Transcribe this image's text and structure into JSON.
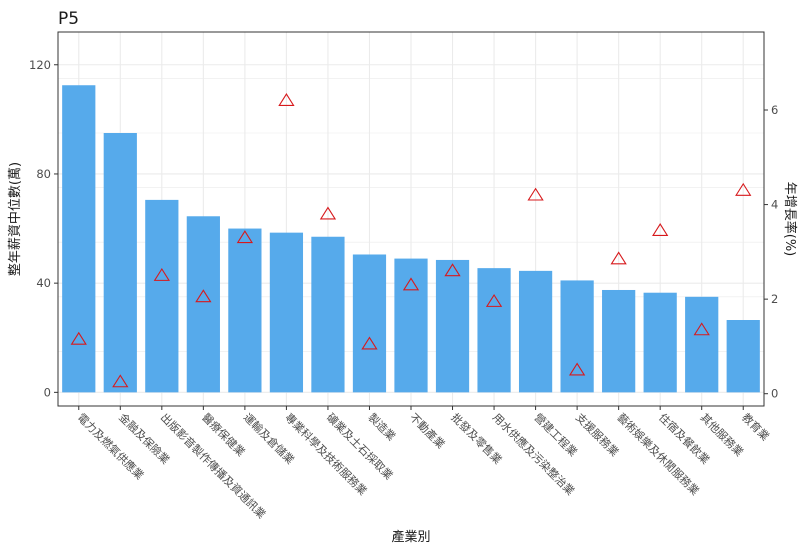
{
  "chart_data": {
    "type": "bar",
    "title": "P5",
    "xlabel": "產業別",
    "ylabel": "整年薪資中位數(萬)",
    "y2label": "年增長率(%)",
    "ylim": [
      -5,
      132
    ],
    "y2lim": [
      -0.26,
      7.65
    ],
    "yticks": [
      0,
      40,
      80,
      120
    ],
    "y2ticks": [
      0,
      2,
      4,
      6
    ],
    "grid": true,
    "legend": "none",
    "categories": [
      "電力及燃氣供應業",
      "金融及保險業",
      "出版影音製作傳播及資通訊業",
      "醫療保健業",
      "運輸及倉儲業",
      "專業科學及技術服務業",
      "礦業及土石採取業",
      "製造業",
      "不動產業",
      "批發及零售業",
      "用水供應及污染整治業",
      "營建工程業",
      "支援服務業",
      "藝術娛樂及休閒服務業",
      "住宿及餐飲業",
      "其他服務業",
      "教育業"
    ],
    "series": [
      {
        "type": "bar",
        "axis": "left",
        "values": [
          112.5,
          95,
          70.5,
          64.5,
          60,
          58.5,
          57,
          50.5,
          49,
          48.5,
          45.5,
          44.5,
          41,
          37.5,
          36.5,
          35,
          26.5
        ]
      },
      {
        "type": "point",
        "marker": "triangle",
        "axis": "right",
        "values": [
          1.15,
          0.25,
          2.5,
          2.05,
          3.3,
          6.2,
          3.8,
          1.05,
          2.3,
          2.6,
          1.95,
          4.2,
          0.5,
          2.85,
          3.45,
          1.35,
          4.3
        ]
      }
    ],
    "colors": {
      "bar": "#56aaeb",
      "point": "#d7191c",
      "grid": "#ebebeb",
      "panel_border": "#333333"
    }
  }
}
